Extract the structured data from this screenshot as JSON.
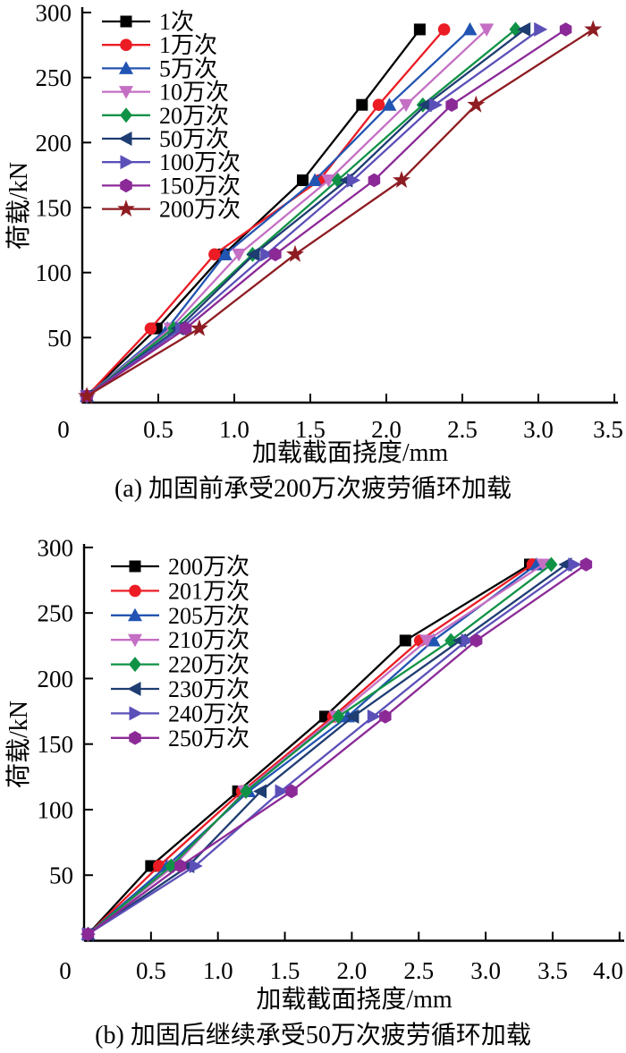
{
  "figure": {
    "background": "#ffffff"
  },
  "chart_data": [
    {
      "id": "a",
      "type": "line",
      "title": "",
      "xlabel": "加载截面挠度/mm",
      "ylabel": "荷载/kN",
      "caption": "(a) 加固前承受200万次疲劳循环加载",
      "xlim": [
        0,
        3.5
      ],
      "ylim": [
        0,
        300
      ],
      "xticks": [
        0,
        0.5,
        1.0,
        1.5,
        2.0,
        2.5,
        3.0,
        3.5
      ],
      "xtick_labels": [
        "0",
        "0.5",
        "1.0",
        "1.5",
        "2.0",
        "2.5",
        "3.0",
        "3.5"
      ],
      "yticks": [
        0,
        50,
        100,
        150,
        200,
        250,
        300
      ],
      "ytick_labels": [
        "0",
        "50",
        "100",
        "150",
        "200",
        "250",
        "300"
      ],
      "grid": false,
      "legend_position": "upper-left-inside",
      "loads_kN": [
        5,
        57,
        114,
        171,
        229,
        287
      ],
      "series": [
        {
          "name": "1次",
          "marker": "square",
          "color": "#000000",
          "deflection_mm": [
            0.03,
            0.49,
            0.93,
            1.45,
            1.84,
            2.22
          ]
        },
        {
          "name": "1万次",
          "marker": "circle",
          "color": "#ec1c24",
          "deflection_mm": [
            0.03,
            0.45,
            0.87,
            1.56,
            1.95,
            2.38
          ]
        },
        {
          "name": "5万次",
          "marker": "triangle-up",
          "color": "#2254b2",
          "deflection_mm": [
            0.03,
            0.56,
            0.94,
            1.53,
            2.02,
            2.55
          ]
        },
        {
          "name": "10万次",
          "marker": "triangle-down",
          "color": "#c46fc4",
          "deflection_mm": [
            0.03,
            0.58,
            1.03,
            1.62,
            2.13,
            2.66
          ]
        },
        {
          "name": "20万次",
          "marker": "diamond",
          "color": "#109246",
          "deflection_mm": [
            0.03,
            0.6,
            1.12,
            1.68,
            2.24,
            2.85
          ]
        },
        {
          "name": "50万次",
          "marker": "triangle-left",
          "color": "#1e3d72",
          "deflection_mm": [
            0.03,
            0.63,
            1.13,
            1.74,
            2.26,
            2.91
          ]
        },
        {
          "name": "100万次",
          "marker": "triangle-right",
          "color": "#5b50b8",
          "deflection_mm": [
            0.03,
            0.65,
            1.21,
            1.78,
            2.32,
            3.01
          ]
        },
        {
          "name": "150万次",
          "marker": "hexagon",
          "color": "#8b2a97",
          "deflection_mm": [
            0.03,
            0.68,
            1.27,
            1.92,
            2.43,
            3.18
          ]
        },
        {
          "name": "200万次",
          "marker": "star",
          "color": "#8e1c22",
          "deflection_mm": [
            0.03,
            0.77,
            1.4,
            2.1,
            2.59,
            3.36
          ]
        }
      ]
    },
    {
      "id": "b",
      "type": "line",
      "title": "",
      "xlabel": "加载截面挠度/mm",
      "ylabel": "荷载/kN",
      "caption": "(b) 加固后继续承受50万次疲劳循环加载",
      "xlim": [
        0,
        4.0
      ],
      "ylim": [
        0,
        300
      ],
      "xticks": [
        0,
        0.5,
        1.0,
        1.5,
        2.0,
        2.5,
        3.0,
        3.5,
        4.0
      ],
      "xtick_labels": [
        "0",
        "0.5",
        "1.0",
        "1.5",
        "2.0",
        "2.5",
        "3.0",
        "3.5",
        "4.0"
      ],
      "yticks": [
        0,
        50,
        100,
        150,
        200,
        250,
        300
      ],
      "ytick_labels": [
        "0",
        "50",
        "100",
        "150",
        "200",
        "250",
        "300"
      ],
      "grid": false,
      "legend_position": "upper-left-inside",
      "loads_kN": [
        5,
        57,
        114,
        171,
        229,
        287
      ],
      "series": [
        {
          "name": "200万次",
          "marker": "square",
          "color": "#000000",
          "deflection_mm": [
            0.03,
            0.5,
            1.15,
            1.8,
            2.4,
            3.33
          ]
        },
        {
          "name": "201万次",
          "marker": "circle",
          "color": "#ec1c24",
          "deflection_mm": [
            0.03,
            0.56,
            1.18,
            1.86,
            2.51,
            3.35
          ]
        },
        {
          "name": "205万次",
          "marker": "triangle-up",
          "color": "#2254b2",
          "deflection_mm": [
            0.03,
            0.62,
            1.23,
            1.97,
            2.61,
            3.38
          ]
        },
        {
          "name": "210万次",
          "marker": "triangle-down",
          "color": "#c46fc4",
          "deflection_mm": [
            0.03,
            0.67,
            1.2,
            1.88,
            2.56,
            3.43
          ]
        },
        {
          "name": "220万次",
          "marker": "diamond",
          "color": "#109246",
          "deflection_mm": [
            0.03,
            0.65,
            1.21,
            1.9,
            2.74,
            3.49
          ]
        },
        {
          "name": "230万次",
          "marker": "triangle-left",
          "color": "#1e3d72",
          "deflection_mm": [
            0.03,
            0.78,
            1.32,
            2.01,
            2.81,
            3.6
          ]
        },
        {
          "name": "240万次",
          "marker": "triangle-right",
          "color": "#5b50b8",
          "deflection_mm": [
            0.03,
            0.83,
            1.47,
            2.16,
            2.86,
            3.66
          ]
        },
        {
          "name": "250万次",
          "marker": "hexagon",
          "color": "#8b2a97",
          "deflection_mm": [
            0.03,
            0.72,
            1.55,
            2.25,
            2.93,
            3.75
          ]
        }
      ]
    }
  ]
}
